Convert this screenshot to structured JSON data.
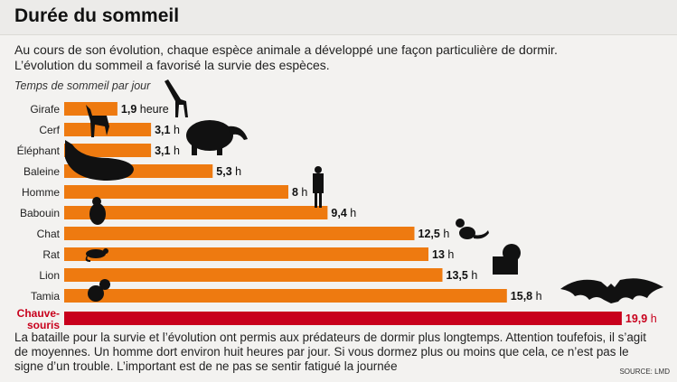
{
  "header": {
    "title": "Durée du sommeil"
  },
  "intro": [
    "Au cours de son évolution, chaque espèce animale a développé une façon particulière de dormir.",
    "L’évolution du sommeil a favorisé la survie des espèces."
  ],
  "footer": "La bataille pour la survie et l’évolution ont permis aux prédateurs de dormir plus longtemps. Attention toufefois, il s’agit de moyennes. Un homme dort environ huit heures par jour. Si vous dormez plus ou moins que cela, ce n’est pas le signe d’un trouble. L’important est de ne pas se sentir fatigué la journée",
  "source": "SOURCE: LMD",
  "colors": {
    "bar": "#ee7a10",
    "highlight": "#c8001c",
    "silhouette": "#111111"
  },
  "chart_data": {
    "type": "bar",
    "orientation": "horizontal",
    "subtitle": "Temps de sommeil par jour",
    "categories": [
      "Girafe",
      "Cerf",
      "Éléphant",
      "Baleine",
      "Homme",
      "Babouin",
      "Chat",
      "Rat",
      "Lion",
      "Tamia",
      "Chauve-souris"
    ],
    "values": [
      1.9,
      3.1,
      3.1,
      5.3,
      8,
      9.4,
      12.5,
      13,
      13.5,
      15.8,
      19.9
    ],
    "value_labels": [
      "1,9 heure",
      "3,1 h",
      "3,1 h",
      "5,3 h",
      "8 h",
      "9,4 h",
      "12,5 h",
      "13 h",
      "13,5 h",
      "15,8 h",
      "19,9 h"
    ],
    "highlight": "Chauve-souris",
    "icons": [
      "giraffe-icon",
      "deer-icon",
      "elephant-icon",
      "whale-icon",
      "man-icon",
      "baboon-icon",
      "cat-icon",
      "rat-icon",
      "lion-icon",
      "squirrel-icon",
      "bat-icon"
    ]
  }
}
